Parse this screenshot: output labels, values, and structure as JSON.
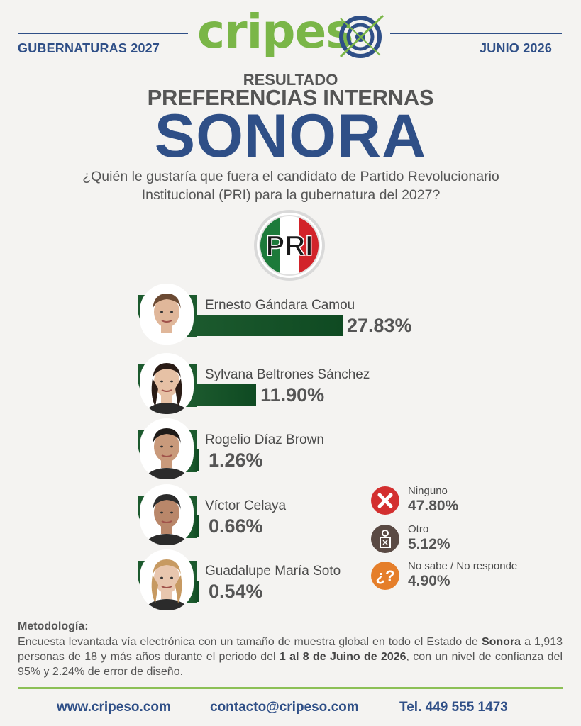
{
  "header": {
    "left": "GUBERNATURAS 2027",
    "right": "JUNIO 2026",
    "logo": "cripeso"
  },
  "titles": {
    "resultado": "RESULTADO",
    "subtitle": "PREFERENCIAS INTERNAS",
    "state": "SONORA",
    "question_line1": "¿Quién le gustaría que fuera el candidato de Partido Revolucionario",
    "question_line2": "Institucional (PRI) para la gubernatura del 2027?"
  },
  "party_logo": "PRI",
  "colors": {
    "brand_blue": "#2f4f87",
    "brand_green": "#7ab648",
    "bar_green": "#1c5a2e",
    "ninguno_red": "#d32f2f",
    "otro_brown": "#5a4a44",
    "nosabe_orange": "#e57e2a"
  },
  "chart_data": {
    "type": "bar",
    "orientation": "horizontal",
    "categories": [
      "Ernesto Gándara Camou",
      "Sylvana Beltrones Sánchez",
      "Rogelio Díaz Brown",
      "Víctor Celaya",
      "Guadalupe María Soto"
    ],
    "values": [
      27.83,
      11.9,
      1.26,
      0.66,
      0.54
    ],
    "labels": [
      "27.83%",
      "11.90%",
      "1.26%",
      "0.66%",
      "0.54%"
    ],
    "others": [
      {
        "label": "Ninguno",
        "value": 47.8,
        "display": "47.80%",
        "icon": "x-icon"
      },
      {
        "label": "Otro",
        "value": 5.12,
        "display": "5.12%",
        "icon": "voter-icon"
      },
      {
        "label": "No sabe / No responde",
        "value": 4.9,
        "display": "4.90%",
        "icon": "question-icon"
      }
    ]
  },
  "methodology": {
    "title": "Metodología:",
    "part1": "Encuesta levantada vía electrónica con un tamaño de muestra global en todo el Estado de ",
    "state": "Sonora",
    "part2": " a 1,913 personas de 18 y más años durante el periodo del ",
    "period": "1 al 8 de Juino de 2026",
    "part3": ", con un nivel de confianza del 95% y 2.24% de error de diseño."
  },
  "footer": {
    "web": "www.cripeso.com",
    "email": "contacto@cripeso.com",
    "phone": "Tel. 449 555 1473"
  }
}
